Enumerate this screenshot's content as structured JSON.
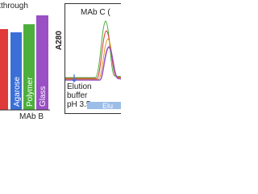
{
  "left_panel": {
    "title": "kthrough",
    "categories": [
      "Agarose",
      "Polymer",
      "Glass"
    ],
    "group_label": "MAb B"
  },
  "right_panel": {
    "title": "MAb C (",
    "y_label": "A280",
    "annotation": [
      "Elution",
      "buffer",
      "pH 3.5"
    ],
    "bar_label": "Elu"
  }
}
